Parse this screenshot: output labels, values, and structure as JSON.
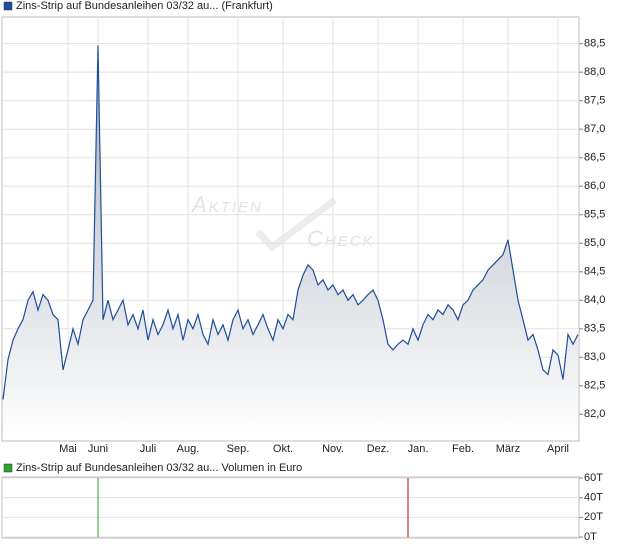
{
  "chart_data": [
    {
      "type": "area",
      "watermark": [
        "Aktien",
        "Check"
      ],
      "categories": [
        null,
        null,
        null,
        null,
        null,
        null,
        null,
        null,
        null,
        null,
        null,
        null,
        null,
        "Mai",
        null,
        null,
        null,
        null,
        null,
        "Juni",
        null,
        null,
        null,
        null,
        null,
        null,
        null,
        null,
        null,
        "Juli",
        null,
        null,
        null,
        null,
        null,
        null,
        null,
        "Aug.",
        null,
        null,
        null,
        null,
        null,
        null,
        null,
        null,
        null,
        "Sep.",
        null,
        null,
        null,
        null,
        null,
        null,
        null,
        null,
        "Okt.",
        null,
        null,
        null,
        null,
        null,
        null,
        null,
        null,
        null,
        "Nov.",
        null,
        null,
        null,
        null,
        null,
        null,
        null,
        null,
        "Dez.",
        null,
        null,
        null,
        null,
        null,
        null,
        null,
        "Jan.",
        null,
        null,
        null,
        null,
        null,
        null,
        null,
        null,
        "Feb.",
        null,
        null,
        null,
        null,
        null,
        null,
        null,
        null,
        "März",
        null,
        null,
        null,
        null,
        null,
        null,
        null,
        null,
        null,
        "April",
        null,
        null,
        null,
        null
      ],
      "series": [
        {
          "name": "Zins-Strip auf Bundesanleihen 03/32 au... (Frankfurt)",
          "color": "#1f4e9c",
          "values": [
            82.26,
            82.96,
            83.3,
            83.5,
            83.66,
            84.0,
            84.15,
            83.83,
            84.1,
            84.0,
            83.75,
            83.66,
            82.78,
            83.13,
            83.5,
            83.23,
            83.66,
            83.83,
            84.0,
            88.47,
            83.66,
            84.0,
            83.66,
            83.83,
            84.0,
            83.57,
            83.75,
            83.5,
            83.83,
            83.3,
            83.66,
            83.4,
            83.57,
            83.83,
            83.5,
            83.75,
            83.3,
            83.66,
            83.5,
            83.75,
            83.4,
            83.23,
            83.66,
            83.4,
            83.57,
            83.3,
            83.66,
            83.83,
            83.5,
            83.66,
            83.4,
            83.57,
            83.75,
            83.5,
            83.3,
            83.66,
            83.5,
            83.75,
            83.66,
            84.18,
            84.44,
            84.62,
            84.53,
            84.27,
            84.36,
            84.18,
            84.27,
            84.1,
            84.18,
            84.0,
            84.1,
            83.92,
            84.0,
            84.1,
            84.18,
            84.0,
            83.66,
            83.23,
            83.13,
            83.23,
            83.3,
            83.23,
            83.5,
            83.3,
            83.57,
            83.75,
            83.66,
            83.83,
            83.75,
            83.92,
            83.83,
            83.66,
            83.92,
            84.0,
            84.18,
            84.27,
            84.36,
            84.53,
            84.62,
            84.71,
            84.8,
            85.06,
            84.53,
            84.0,
            83.66,
            83.3,
            83.4,
            83.13,
            82.78,
            82.7,
            83.13,
            83.04,
            82.61,
            83.4,
            83.23,
            83.4
          ]
        }
      ],
      "ylim": [
        81.55,
        88.95
      ],
      "yticks": [
        {
          "value": 82.0,
          "label": "82,0"
        },
        {
          "value": 82.5,
          "label": "82,5"
        },
        {
          "value": 83.0,
          "label": "83,0"
        },
        {
          "value": 83.5,
          "label": "83,5"
        },
        {
          "value": 84.0,
          "label": "84,0"
        },
        {
          "value": 84.5,
          "label": "84,5"
        },
        {
          "value": 85.0,
          "label": "85,0"
        },
        {
          "value": 85.5,
          "label": "85,5"
        },
        {
          "value": 86.0,
          "label": "86,0"
        },
        {
          "value": 86.5,
          "label": "86,5"
        },
        {
          "value": 87.0,
          "label": "87,0"
        },
        {
          "value": 87.5,
          "label": "87,5"
        },
        {
          "value": 88.0,
          "label": "88,0"
        },
        {
          "value": 88.5,
          "label": "88,5"
        }
      ],
      "grid": true
    },
    {
      "type": "bar",
      "series": [
        {
          "name": "Zins-Strip auf Bundesanleihen 03/32 au... Volumen in Euro",
          "color": "#2ca02c",
          "x": [
            19,
            81
          ],
          "values": [
            60000,
            60000
          ],
          "colors": [
            "#2ca02c",
            "#c00000"
          ]
        }
      ],
      "xlim": [
        0,
        115
      ],
      "ylim": [
        0,
        60000
      ],
      "yticks": [
        {
          "value": 0,
          "label": "0T"
        },
        {
          "value": 20000,
          "label": "20T"
        },
        {
          "value": 40000,
          "label": "40T"
        },
        {
          "value": 60000,
          "label": "60T"
        }
      ],
      "grid": true
    }
  ]
}
